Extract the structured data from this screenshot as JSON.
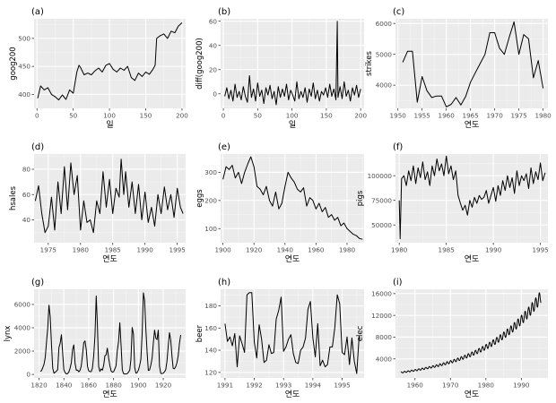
{
  "figure_name": "ggplot-time-series-grid",
  "chart_data": [
    {
      "panel": "(a)",
      "type": "line",
      "xlabel": "일",
      "ylabel": "goog200",
      "xlim": [
        -4,
        205
      ],
      "ylim": [
        375,
        535
      ],
      "xticks": [
        0,
        50,
        100,
        150,
        200
      ],
      "xtick_labels": [
        "0",
        "50",
        "100",
        "150",
        "200"
      ],
      "yticks": [
        400,
        450,
        500
      ],
      "ytick_labels": [
        "400",
        "450",
        "500"
      ],
      "x": [
        1,
        5,
        10,
        15,
        20,
        25,
        30,
        35,
        40,
        45,
        50,
        55,
        58,
        60,
        65,
        70,
        75,
        80,
        85,
        90,
        95,
        100,
        105,
        110,
        115,
        120,
        125,
        130,
        135,
        140,
        145,
        150,
        155,
        160,
        163,
        165,
        170,
        175,
        180,
        185,
        190,
        195,
        200
      ],
      "y": [
        393,
        415,
        408,
        412,
        400,
        396,
        390,
        399,
        391,
        408,
        402,
        440,
        452,
        448,
        435,
        438,
        435,
        442,
        447,
        440,
        452,
        455,
        445,
        440,
        447,
        443,
        450,
        430,
        425,
        438,
        432,
        440,
        436,
        445,
        452,
        500,
        505,
        508,
        500,
        513,
        510,
        522,
        528
      ]
    },
    {
      "panel": "(b)",
      "type": "line",
      "xlabel": "일",
      "ylabel": "diff(goog200)",
      "xlim": [
        -4,
        205
      ],
      "ylim": [
        -12,
        62
      ],
      "xticks": [
        0,
        50,
        100,
        150,
        200
      ],
      "xtick_labels": [
        "0",
        "50",
        "100",
        "150",
        "200"
      ],
      "yticks": [
        0,
        20,
        40,
        60
      ],
      "ytick_labels": [
        "0",
        "20",
        "40",
        "60"
      ],
      "x": [
        2,
        5,
        8,
        11,
        14,
        17,
        20,
        23,
        26,
        29,
        32,
        35,
        38,
        41,
        44,
        47,
        50,
        53,
        56,
        59,
        62,
        65,
        68,
        71,
        74,
        77,
        80,
        83,
        86,
        89,
        92,
        95,
        98,
        101,
        104,
        107,
        110,
        113,
        116,
        119,
        122,
        125,
        128,
        131,
        134,
        137,
        140,
        143,
        146,
        149,
        152,
        155,
        158,
        161,
        164,
        166,
        167,
        170,
        173,
        176,
        179,
        182,
        185,
        188,
        191,
        194,
        197,
        200
      ],
      "y": [
        -2,
        5,
        -4,
        3,
        -6,
        8,
        -3,
        2,
        -5,
        6,
        -2,
        -7,
        15,
        -3,
        4,
        -6,
        9,
        -2,
        3,
        -8,
        5,
        -1,
        7,
        -4,
        2,
        -9,
        6,
        -3,
        4,
        -2,
        8,
        -5,
        3,
        -1,
        -6,
        10,
        -4,
        2,
        -3,
        5,
        -7,
        4,
        -2,
        9,
        -4,
        3,
        -6,
        2,
        -1,
        5,
        -3,
        8,
        -2,
        4,
        -5,
        60,
        -3,
        6,
        -4,
        10,
        -2,
        3,
        -6,
        5,
        -1,
        7,
        -3,
        4
      ]
    },
    {
      "panel": "(c)",
      "type": "line",
      "xlabel": "연도",
      "ylabel": "strikes",
      "xlim": [
        1949.5,
        1981
      ],
      "ylim": [
        3250,
        6150
      ],
      "xticks": [
        1950,
        1955,
        1960,
        1965,
        1970,
        1975,
        1980
      ],
      "xtick_labels": [
        "1950",
        "1955",
        "1960",
        "1965",
        "1970",
        "1975",
        "1980"
      ],
      "yticks": [
        4000,
        5000,
        6000
      ],
      "ytick_labels": [
        "4000",
        "5000",
        "6000"
      ],
      "x": [
        1951,
        1952,
        1953,
        1954,
        1955,
        1956,
        1957,
        1958,
        1959,
        1960,
        1961,
        1962,
        1963,
        1964,
        1965,
        1966,
        1967,
        1968,
        1969,
        1970,
        1971,
        1972,
        1973,
        1974,
        1975,
        1976,
        1977,
        1978,
        1979,
        1980
      ],
      "y": [
        4740,
        5100,
        5100,
        3450,
        4280,
        3820,
        3600,
        3650,
        3650,
        3300,
        3380,
        3600,
        3360,
        3640,
        4100,
        4400,
        4700,
        5000,
        5700,
        5700,
        5200,
        5000,
        5550,
        6050,
        5000,
        5640,
        5500,
        4240,
        4800,
        3900
      ]
    },
    {
      "panel": "(d)",
      "type": "line",
      "xlabel": "연도",
      "ylabel": "hsales",
      "xlim": [
        1972.8,
        1996.3
      ],
      "ylim": [
        22,
        92
      ],
      "xticks": [
        1975,
        1980,
        1985,
        1990,
        1995
      ],
      "xtick_labels": [
        "1975",
        "1980",
        "1985",
        "1990",
        "1995"
      ],
      "yticks": [
        40,
        60,
        80
      ],
      "ytick_labels": [
        "40",
        "60",
        "80"
      ],
      "x": [
        1973.0,
        1973.5,
        1974.0,
        1974.5,
        1975.0,
        1975.5,
        1976.0,
        1976.5,
        1977.0,
        1977.5,
        1978.0,
        1978.5,
        1979.0,
        1979.5,
        1980.0,
        1980.5,
        1981.0,
        1981.5,
        1982.0,
        1982.5,
        1983.0,
        1983.5,
        1984.0,
        1984.5,
        1985.0,
        1985.5,
        1986.0,
        1986.3,
        1986.7,
        1987.0,
        1987.5,
        1988.0,
        1988.5,
        1989.0,
        1989.5,
        1990.0,
        1990.5,
        1991.0,
        1991.5,
        1992.0,
        1992.5,
        1993.0,
        1993.5,
        1994.0,
        1994.5,
        1995.0,
        1995.5,
        1995.9
      ],
      "y": [
        55,
        67,
        45,
        30,
        35,
        58,
        32,
        70,
        45,
        82,
        48,
        85,
        60,
        75,
        32,
        55,
        38,
        40,
        30,
        55,
        45,
        78,
        50,
        72,
        45,
        65,
        58,
        88,
        60,
        78,
        50,
        70,
        45,
        68,
        40,
        62,
        38,
        50,
        35,
        60,
        45,
        66,
        48,
        60,
        42,
        65,
        50,
        45
      ]
    },
    {
      "panel": "(e)",
      "type": "line",
      "xlabel": "연도",
      "ylabel": "eggs",
      "xlim": [
        1898.5,
        1991
      ],
      "ylim": [
        50,
        365
      ],
      "xticks": [
        1900,
        1920,
        1940,
        1960,
        1980
      ],
      "xtick_labels": [
        "1900",
        "1920",
        "1940",
        "1960",
        "1980"
      ],
      "yticks": [
        100,
        200,
        300
      ],
      "ytick_labels": [
        "100",
        "200",
        "300"
      ],
      "x": [
        1900,
        1902,
        1904,
        1906,
        1908,
        1910,
        1912,
        1914,
        1916,
        1918,
        1920,
        1922,
        1924,
        1926,
        1928,
        1930,
        1932,
        1934,
        1936,
        1938,
        1940,
        1942,
        1944,
        1946,
        1948,
        1950,
        1952,
        1954,
        1956,
        1958,
        1960,
        1962,
        1964,
        1966,
        1968,
        1970,
        1972,
        1974,
        1976,
        1978,
        1980,
        1982,
        1984,
        1986,
        1988,
        1990
      ],
      "y": [
        275,
        320,
        310,
        325,
        280,
        300,
        260,
        300,
        330,
        355,
        320,
        250,
        240,
        220,
        250,
        200,
        180,
        230,
        170,
        190,
        250,
        300,
        280,
        265,
        240,
        230,
        245,
        180,
        210,
        200,
        170,
        190,
        160,
        175,
        140,
        150,
        130,
        140,
        110,
        120,
        100,
        90,
        80,
        75,
        65,
        62
      ]
    },
    {
      "panel": "(f)",
      "type": "line",
      "xlabel": "연도",
      "ylabel": "pigs",
      "xlim": [
        1979.6,
        1995.8
      ],
      "ylim": [
        32000,
        122000
      ],
      "xticks": [
        1980,
        1985,
        1990,
        1995
      ],
      "xtick_labels": [
        "1980",
        "1985",
        "1990",
        "1995"
      ],
      "yticks": [
        50000,
        75000,
        100000
      ],
      "ytick_labels": [
        "50000",
        "75000",
        "100000"
      ],
      "x": [
        1980.0,
        1980.1,
        1980.25,
        1980.5,
        1980.75,
        1981.0,
        1981.25,
        1981.5,
        1981.75,
        1982.0,
        1982.25,
        1982.5,
        1982.75,
        1983.0,
        1983.25,
        1983.5,
        1983.75,
        1984.0,
        1984.25,
        1984.5,
        1984.75,
        1985.0,
        1985.25,
        1985.5,
        1985.75,
        1986.0,
        1986.25,
        1986.5,
        1986.75,
        1987.0,
        1987.25,
        1987.5,
        1987.75,
        1988.0,
        1988.25,
        1988.5,
        1988.75,
        1989.0,
        1989.25,
        1989.5,
        1989.75,
        1990.0,
        1990.25,
        1990.5,
        1990.75,
        1991.0,
        1991.25,
        1991.5,
        1991.75,
        1992.0,
        1992.25,
        1992.5,
        1992.75,
        1993.0,
        1993.25,
        1993.5,
        1993.75,
        1994.0,
        1994.25,
        1994.5,
        1994.75,
        1995.0,
        1995.25,
        1995.5
      ],
      "y": [
        75000,
        36000,
        97000,
        100000,
        90000,
        105000,
        95000,
        110000,
        92000,
        108000,
        98000,
        114000,
        96000,
        104000,
        90000,
        110000,
        100000,
        117000,
        105000,
        112000,
        100000,
        120000,
        102000,
        110000,
        96000,
        105000,
        80000,
        72000,
        65000,
        70000,
        60000,
        75000,
        68000,
        78000,
        72000,
        80000,
        76000,
        78000,
        85000,
        72000,
        80000,
        88000,
        74000,
        90000,
        80000,
        95000,
        85000,
        100000,
        88000,
        98000,
        82000,
        105000,
        90000,
        100000,
        95000,
        102000,
        87000,
        108000,
        92000,
        104000,
        96000,
        113000,
        95000,
        103000
      ]
    },
    {
      "panel": "(g)",
      "type": "line",
      "xlabel": "연도",
      "ylabel": "lynx",
      "xlim": [
        1816,
        1938
      ],
      "ylim": [
        -300,
        7300
      ],
      "xticks": [
        1820,
        1840,
        1860,
        1880,
        1900,
        1920
      ],
      "xtick_labels": [
        "1820",
        "1840",
        "1860",
        "1880",
        "1900",
        "1920"
      ],
      "yticks": [
        0,
        2000,
        4000,
        6000
      ],
      "ytick_labels": [
        "0",
        "2000",
        "4000",
        "6000"
      ],
      "x": [
        1821,
        1822,
        1823,
        1824,
        1825,
        1826,
        1827,
        1828,
        1829,
        1830,
        1831,
        1832,
        1833,
        1834,
        1835,
        1836,
        1837,
        1838,
        1839,
        1840,
        1841,
        1842,
        1843,
        1844,
        1845,
        1846,
        1847,
        1848,
        1849,
        1850,
        1851,
        1852,
        1853,
        1854,
        1855,
        1856,
        1857,
        1858,
        1859,
        1860,
        1861,
        1862,
        1863,
        1864,
        1865,
        1866,
        1867,
        1868,
        1869,
        1870,
        1871,
        1872,
        1873,
        1874,
        1875,
        1876,
        1877,
        1878,
        1879,
        1880,
        1881,
        1882,
        1883,
        1884,
        1885,
        1886,
        1887,
        1888,
        1889,
        1890,
        1891,
        1892,
        1893,
        1894,
        1895,
        1896,
        1897,
        1898,
        1899,
        1900,
        1901,
        1902,
        1903,
        1904,
        1905,
        1906,
        1907,
        1908,
        1909,
        1910,
        1911,
        1912,
        1913,
        1914,
        1915,
        1916,
        1917,
        1918,
        1919,
        1920,
        1921,
        1922,
        1923,
        1924,
        1925,
        1926,
        1927,
        1928,
        1929,
        1930,
        1931,
        1932,
        1933,
        1934
      ],
      "y": [
        269,
        321,
        585,
        871,
        1475,
        2821,
        3928,
        5943,
        4950,
        2577,
        523,
        98,
        184,
        279,
        409,
        2285,
        2685,
        3409,
        1824,
        409,
        151,
        45,
        68,
        213,
        546,
        1033,
        2129,
        2536,
        957,
        361,
        377,
        225,
        360,
        731,
        1638,
        2725,
        2871,
        2119,
        684,
        299,
        236,
        245,
        552,
        1623,
        3311,
        6721,
        4254,
        687,
        255,
        473,
        358,
        784,
        1594,
        1676,
        2251,
        1426,
        756,
        299,
        201,
        229,
        469,
        736,
        2042,
        2811,
        4431,
        2511,
        389,
        73,
        39,
        49,
        59,
        188,
        377,
        1292,
        4031,
        3495,
        587,
        105,
        153,
        387,
        758,
        1307,
        3465,
        6991,
        6313,
        3794,
        1836,
        345,
        382,
        808,
        1388,
        2713,
        3800,
        3091,
        2985,
        3790,
        674,
        81,
        80,
        108,
        229,
        399,
        1132,
        2432,
        3574,
        2935,
        1537,
        529,
        485,
        662,
        1000,
        1590,
        2657,
        3396
      ]
    },
    {
      "panel": "(h)",
      "type": "line",
      "xlabel": "연도",
      "ylabel": "beer",
      "xlim": [
        1990.85,
        1995.75
      ],
      "ylim": [
        115,
        195
      ],
      "xticks": [
        1991,
        1992,
        1993,
        1994,
        1995
      ],
      "xtick_labels": [
        "1991",
        "1992",
        "1993",
        "1994",
        "1995"
      ],
      "yticks": [
        120,
        140,
        160,
        180
      ],
      "ytick_labels": [
        "120",
        "140",
        "160",
        "180"
      ],
      "x": [
        1991.0,
        1991.083,
        1991.167,
        1991.25,
        1991.333,
        1991.417,
        1991.5,
        1991.583,
        1991.667,
        1991.75,
        1991.833,
        1991.917,
        1992.0,
        1992.083,
        1992.167,
        1992.25,
        1992.333,
        1992.417,
        1992.5,
        1992.583,
        1992.667,
        1992.75,
        1992.833,
        1992.917,
        1993.0,
        1993.083,
        1993.167,
        1993.25,
        1993.333,
        1993.417,
        1993.5,
        1993.583,
        1993.667,
        1993.75,
        1993.833,
        1993.917,
        1994.0,
        1994.083,
        1994.167,
        1994.25,
        1994.333,
        1994.417,
        1994.5,
        1994.583,
        1994.667,
        1994.75,
        1994.833,
        1994.917,
        1995.0,
        1995.083,
        1995.167,
        1995.25,
        1995.333,
        1995.417,
        1995.5,
        1995.583
      ],
      "y": [
        164,
        148,
        152,
        144,
        155,
        125,
        153,
        146,
        138,
        190,
        192,
        192,
        147,
        133,
        163,
        150,
        129,
        131,
        145,
        137,
        138,
        168,
        176,
        188,
        139,
        143,
        150,
        154,
        137,
        129,
        128,
        140,
        143,
        151,
        177,
        184,
        151,
        134,
        164,
        126,
        131,
        125,
        127,
        143,
        143,
        160,
        190,
        182,
        138,
        136,
        152,
        127,
        151,
        130,
        119,
        153
      ]
    },
    {
      "panel": "(i)",
      "type": "line",
      "xlabel": "연도",
      "ylabel": "elec",
      "xlim": [
        1954.5,
        1997.5
      ],
      "ylim": [
        500,
        16800
      ],
      "xticks": [
        1960,
        1970,
        1980,
        1990
      ],
      "xtick_labels": [
        "1960",
        "1970",
        "1980",
        "1990"
      ],
      "yticks": [
        4000,
        8000,
        12000,
        16000
      ],
      "ytick_labels": [
        "4000",
        "8000",
        "12000",
        "16000"
      ],
      "trend": {
        "start_year": 1956,
        "end_year": 1995.6,
        "start_value": 1500,
        "growth_rate": 0.059,
        "seasonal_amplitude": 0.075
      }
    }
  ]
}
